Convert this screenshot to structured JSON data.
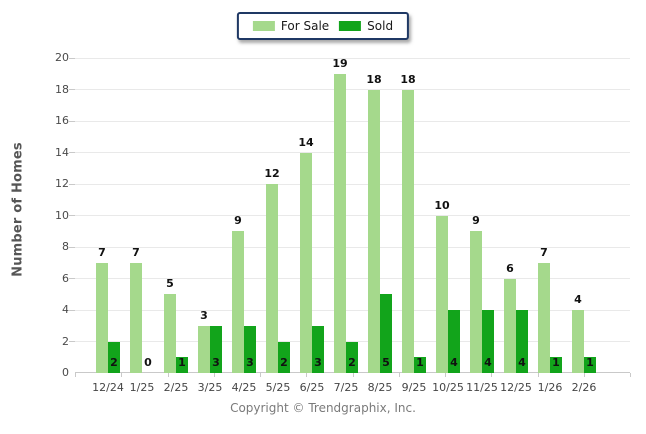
{
  "legend": {
    "for_sale_label": "For Sale",
    "sold_label": "Sold"
  },
  "footer": {
    "copyright": "Copyright © Trendgraphix, Inc."
  },
  "colors": {
    "for_sale": "#A5D98C",
    "sold": "#12A41B",
    "legend_border": "#1F3864",
    "gridline": "#E9E9E9",
    "axis": "#C9C9C9"
  },
  "chart_data": {
    "type": "bar",
    "title": "",
    "categories": [
      "12/24",
      "1/25",
      "2/25",
      "3/25",
      "4/25",
      "5/25",
      "6/25",
      "7/25",
      "8/25",
      "9/25",
      "10/25",
      "11/25",
      "12/25",
      "1/26",
      "2/26"
    ],
    "series": [
      {
        "name": "For Sale",
        "color": "#A5D98C",
        "values": [
          7,
          7,
          5,
          3,
          9,
          12,
          14,
          19,
          18,
          18,
          10,
          9,
          6,
          7,
          4
        ]
      },
      {
        "name": "Sold",
        "color": "#12A41B",
        "values": [
          2,
          0,
          1,
          3,
          3,
          2,
          3,
          2,
          5,
          1,
          4,
          4,
          4,
          1,
          1
        ]
      }
    ],
    "xlabel": "",
    "ylabel": "Number of Homes",
    "ylim": [
      0,
      20
    ],
    "ytick_step": 2,
    "grid": true,
    "legend_position": "top-center",
    "value_labels": "For Sale labels above bars; Sold labels near baseline inside bars"
  }
}
